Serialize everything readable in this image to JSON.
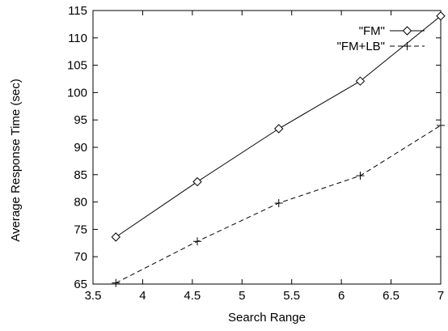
{
  "chart_data": {
    "type": "line",
    "title": "",
    "xlabel": "Search Range",
    "ylabel": "Average Response Time (sec)",
    "xlim": [
      3.5,
      7
    ],
    "ylim": [
      65,
      115
    ],
    "xticks": [
      3.5,
      4,
      4.5,
      5,
      5.5,
      6,
      6.5,
      7
    ],
    "xtick_labels": [
      "3.5",
      "4",
      "4.5",
      "5",
      "5.5",
      "6",
      "6.5",
      "7"
    ],
    "yticks": [
      65,
      70,
      75,
      80,
      85,
      90,
      95,
      100,
      105,
      110,
      115
    ],
    "ytick_labels": [
      "65",
      "70",
      "75",
      "80",
      "85",
      "90",
      "95",
      "100",
      "105",
      "110",
      "115"
    ],
    "grid": false,
    "legend_position": "top-right",
    "series": [
      {
        "name": "\"FM\"",
        "marker": "diamond",
        "line_style": "solid",
        "color": "#000000",
        "x": [
          3.73,
          4.55,
          5.37,
          6.19,
          7.0
        ],
        "y": [
          73.6,
          83.7,
          93.4,
          102.1,
          114.0
        ]
      },
      {
        "name": "\"FM+LB\"",
        "marker": "plus",
        "line_style": "dashed",
        "color": "#000000",
        "x": [
          3.73,
          4.55,
          5.37,
          6.19,
          7.0
        ],
        "y": [
          65.2,
          72.8,
          79.8,
          84.8,
          94.0
        ]
      }
    ]
  }
}
